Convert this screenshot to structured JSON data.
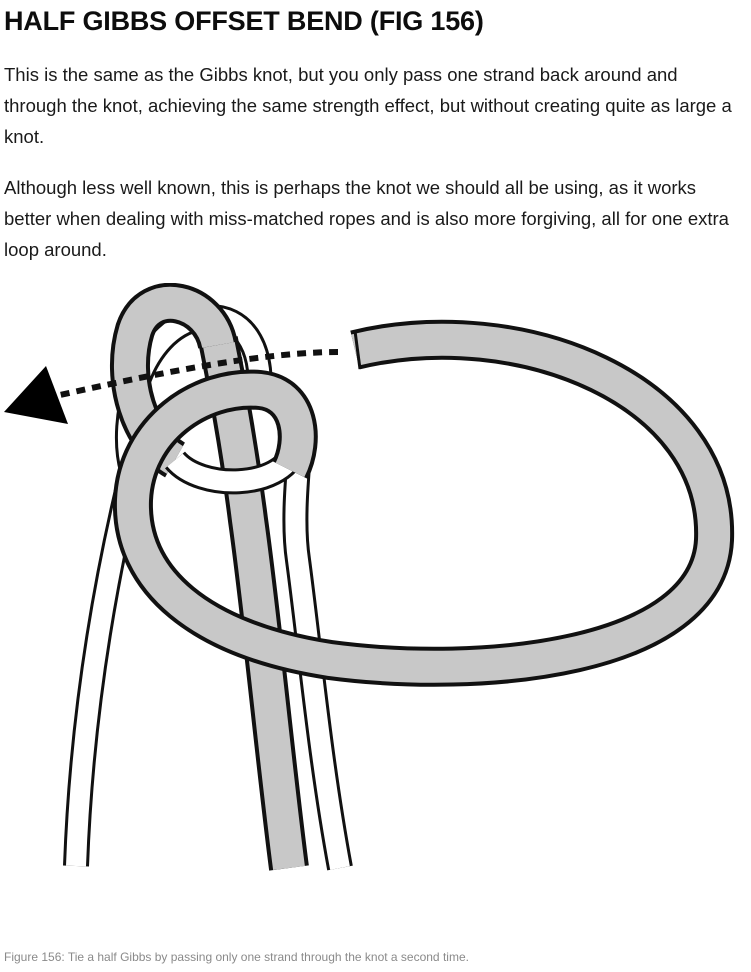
{
  "article": {
    "heading": "HALF GIBBS OFFSET BEND (FIG 156)",
    "paragraphs": [
      "This is the same as the Gibbs knot, but you only pass one strand back around and through the knot, achieving the same strength effect, but without creating quite as large a knot.",
      "Although less well known, this is perhaps the knot we should all be using, as it works better when dealing with miss-matched ropes and is also more forgiving, all for one extra loop around."
    ]
  },
  "figure": {
    "illustration": "knot-illustration",
    "rope_colors": {
      "grey_strand": "#c8c8c8",
      "white_strand": "#ffffff",
      "outline": "#111111"
    },
    "caption": "Figure 156: Tie a half Gibbs by passing only one strand through the knot a second time."
  }
}
